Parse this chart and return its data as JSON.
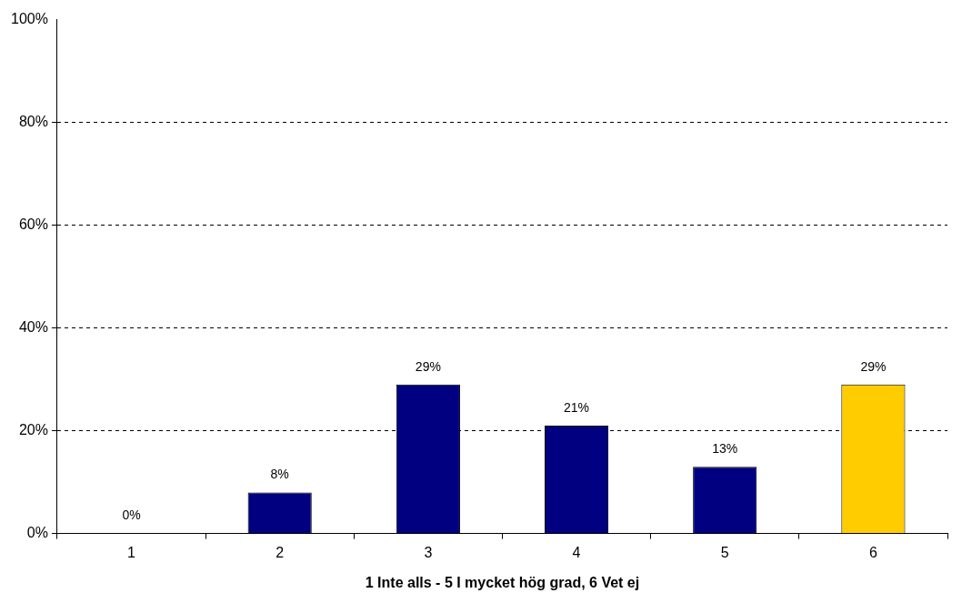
{
  "chart_data": {
    "type": "bar",
    "xlabel": "1 Inte alls - 5 I mycket hög grad, 6 Vet ej",
    "categories": [
      "1",
      "2",
      "3",
      "4",
      "5",
      "6"
    ],
    "values": [
      0,
      8,
      29,
      21,
      13,
      29
    ],
    "colors": [
      "#000080",
      "#000080",
      "#000080",
      "#000080",
      "#000080",
      "#ffcc00"
    ],
    "value_labels": [
      "0%",
      "8%",
      "29%",
      "21%",
      "13%",
      "29%"
    ],
    "ylim": [
      0,
      100
    ],
    "yticks": [
      {
        "value": 0,
        "label": "0%"
      },
      {
        "value": 20,
        "label": "20%"
      },
      {
        "value": 40,
        "label": "40%"
      },
      {
        "value": 60,
        "label": "60%"
      },
      {
        "value": 80,
        "label": "80%"
      },
      {
        "value": 100,
        "label": "100%"
      }
    ],
    "grid": "y",
    "legend": false
  }
}
